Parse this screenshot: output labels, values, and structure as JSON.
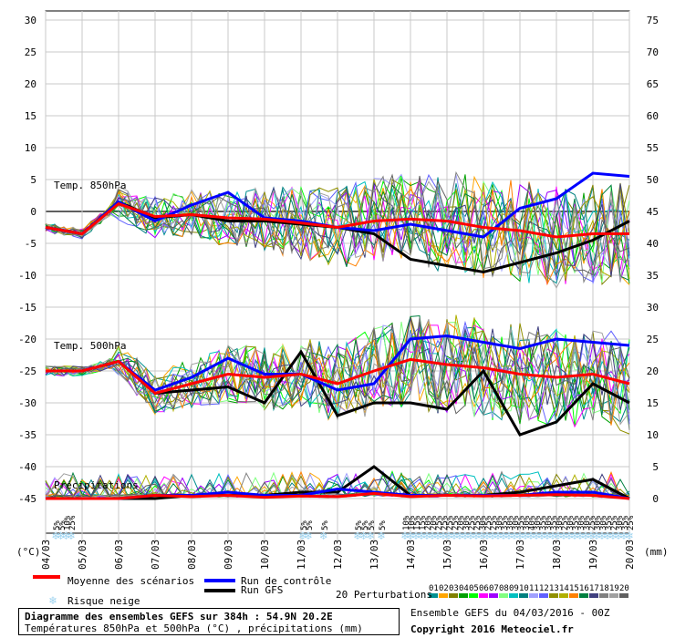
{
  "chart_data": {
    "type": "line",
    "x": [
      "04/03",
      "05/03",
      "06/03",
      "07/03",
      "08/03",
      "09/03",
      "10/03",
      "11/03",
      "12/03",
      "13/03",
      "14/03",
      "15/03",
      "16/03",
      "17/03",
      "18/03",
      "19/03",
      "20/03"
    ],
    "y_left_ticks": [
      "30",
      "25",
      "20",
      "15",
      "10",
      "5",
      "0",
      "-5",
      "-10",
      "-15",
      "-20",
      "-25",
      "-30",
      "-35",
      "-40",
      "-45"
    ],
    "y_right_ticks": [
      "75",
      "70",
      "65",
      "60",
      "55",
      "50",
      "45",
      "40",
      "35",
      "30",
      "25",
      "20",
      "15",
      "10",
      "5",
      "0"
    ],
    "y_left_unit": "(°C)",
    "y_right_unit": "(mm)",
    "ylim_left": [
      -45,
      30
    ],
    "panel_labels": [
      "Temp. 850hPa",
      "Temp. 500hPa",
      "Précipitations"
    ],
    "grid": true,
    "series": [
      {
        "name": "Moyenne des scénarios",
        "color": "#ff0000",
        "t850": [
          -2.5,
          -3.5,
          1.2,
          -0.8,
          -0.5,
          -1,
          -1.2,
          -1.8,
          -2.5,
          -1.5,
          -1.2,
          -1.5,
          -2.5,
          -3,
          -4,
          -3.5,
          -3.5
        ],
        "t500": [
          -25,
          -25,
          -23.5,
          -28.5,
          -27,
          -25.5,
          -26,
          -25.5,
          -27,
          -25,
          -23.2,
          -24,
          -24.5,
          -25.5,
          -26,
          -25.5,
          -27
        ],
        "precip": [
          0,
          0,
          0,
          0.5,
          0.3,
          0.5,
          0.2,
          0.4,
          0.3,
          0.8,
          0.3,
          0.5,
          0.4,
          0.5,
          0.6,
          0.5,
          0
        ]
      },
      {
        "name": "Run de contrôle",
        "color": "#0000ff",
        "t850": [
          -2.5,
          -3.5,
          1.5,
          -1.5,
          1,
          3,
          -1,
          -1.5,
          -2.5,
          -3,
          -2,
          -3,
          -4,
          0.5,
          2,
          6,
          5.5
        ],
        "t500": [
          -25,
          -25,
          -23.5,
          -28,
          -26,
          -23,
          -25.5,
          -25.5,
          -28,
          -27,
          -20,
          -19.5,
          -20.5,
          -21.5,
          -20,
          -20.5,
          -21
        ],
        "precip": [
          0,
          0,
          0,
          0.5,
          0.5,
          1,
          0.5,
          0.5,
          1.5,
          1,
          0.5,
          0.5,
          0.5,
          0.5,
          1,
          1,
          0
        ]
      },
      {
        "name": "Run GFS",
        "color": "#000000",
        "t850": [
          -2.5,
          -3.5,
          1.5,
          -1,
          -0.5,
          -1.5,
          -1.5,
          -2,
          -2.5,
          -3.5,
          -7.5,
          -8.5,
          -9.5,
          -8,
          -6.5,
          -4.5,
          -1.5
        ],
        "t500": [
          -25,
          -25,
          -23.5,
          -28.5,
          -28,
          -27.5,
          -30,
          -22,
          -32,
          -30,
          -30,
          -31,
          -25,
          -35,
          -33,
          -27,
          -30
        ],
        "precip": [
          0,
          0,
          0,
          0,
          0.5,
          0.5,
          0.5,
          1,
          1,
          5,
          0.5,
          0.5,
          0.5,
          1,
          2,
          3,
          0
        ]
      }
    ],
    "perturbations": {
      "count": 20,
      "labels": [
        "01",
        "02",
        "03",
        "04",
        "05",
        "06",
        "07",
        "08",
        "09",
        "10",
        "11",
        "12",
        "13",
        "14",
        "15",
        "16",
        "17",
        "18",
        "19",
        "20"
      ],
      "colors": [
        "#009090",
        "#ffa500",
        "#808000",
        "#00a000",
        "#00ff00",
        "#ff00ff",
        "#a000ff",
        "#80ff80",
        "#00c0c0",
        "#008080",
        "#a0a0ff",
        "#6060ff",
        "#909000",
        "#b0b000",
        "#ff8000",
        "#008040",
        "#404080",
        "#808080",
        "#a0a0a0",
        "#606060"
      ]
    },
    "snow_risk": [
      {
        "x": 0.28,
        "pct": "5%"
      },
      {
        "x": 0.42,
        "pct": "5%"
      },
      {
        "x": 0.56,
        "pct": "10%"
      },
      {
        "x": 0.7,
        "pct": "25%"
      },
      {
        "x": 7.05,
        "pct": "5%"
      },
      {
        "x": 7.2,
        "pct": "5%"
      },
      {
        "x": 7.62,
        "pct": "5%"
      },
      {
        "x": 8.55,
        "pct": "5%"
      },
      {
        "x": 8.72,
        "pct": "5%"
      },
      {
        "x": 8.9,
        "pct": "5%"
      },
      {
        "x": 9.2,
        "pct": "5%"
      },
      {
        "x": 9.85,
        "pct": "10%"
      },
      {
        "x": 10.0,
        "pct": "10%"
      },
      {
        "x": 10.15,
        "pct": "15%"
      },
      {
        "x": 10.3,
        "pct": "15%"
      },
      {
        "x": 10.45,
        "pct": "20%"
      },
      {
        "x": 10.6,
        "pct": "20%"
      },
      {
        "x": 10.75,
        "pct": "25%"
      },
      {
        "x": 10.9,
        "pct": "25%"
      },
      {
        "x": 11.05,
        "pct": "25%"
      },
      {
        "x": 11.2,
        "pct": "25%"
      },
      {
        "x": 11.35,
        "pct": "20%"
      },
      {
        "x": 11.5,
        "pct": "30%"
      },
      {
        "x": 11.65,
        "pct": "25%"
      },
      {
        "x": 11.8,
        "pct": "25%"
      },
      {
        "x": 11.95,
        "pct": "30%"
      },
      {
        "x": 12.1,
        "pct": "25%"
      },
      {
        "x": 12.25,
        "pct": "25%"
      },
      {
        "x": 12.4,
        "pct": "30%"
      },
      {
        "x": 12.55,
        "pct": "35%"
      },
      {
        "x": 12.7,
        "pct": "30%"
      },
      {
        "x": 12.85,
        "pct": "30%"
      },
      {
        "x": 13.0,
        "pct": "35%"
      },
      {
        "x": 13.15,
        "pct": "30%"
      },
      {
        "x": 13.3,
        "pct": "40%"
      },
      {
        "x": 13.45,
        "pct": "30%"
      },
      {
        "x": 13.6,
        "pct": "35%"
      },
      {
        "x": 13.75,
        "pct": "30%"
      },
      {
        "x": 13.9,
        "pct": "35%"
      },
      {
        "x": 14.05,
        "pct": "30%"
      },
      {
        "x": 14.2,
        "pct": "25%"
      },
      {
        "x": 14.35,
        "pct": "30%"
      },
      {
        "x": 14.5,
        "pct": "35%"
      },
      {
        "x": 14.65,
        "pct": "30%"
      },
      {
        "x": 14.8,
        "pct": "30%"
      },
      {
        "x": 14.95,
        "pct": "25%"
      },
      {
        "x": 15.1,
        "pct": "30%"
      },
      {
        "x": 15.25,
        "pct": "30%"
      },
      {
        "x": 15.4,
        "pct": "35%"
      },
      {
        "x": 15.55,
        "pct": "25%"
      },
      {
        "x": 15.7,
        "pct": "30%"
      },
      {
        "x": 15.85,
        "pct": "35%"
      },
      {
        "x": 16.0,
        "pct": "25%"
      }
    ]
  },
  "legend": {
    "mean": "Moyenne des scénarios",
    "control": "Run de contrôle",
    "gfs": "Run GFS",
    "snow": "Risque neige",
    "perturbations": "20 Perturbations"
  },
  "footer": {
    "title": "Diagramme des ensembles GEFS sur 384h : 54.9N 20.2E",
    "subtitle": "Températures 850hPa et 500hPa (°C) , précipitations (mm)",
    "run": "Ensemble GEFS du 04/03/2016 - 00Z",
    "copyright": "Copyright 2016 Meteociel.fr"
  },
  "colors": {
    "mean": "#ff0000",
    "control": "#0000ff",
    "gfs": "#000000",
    "grid": "#c8c8c8",
    "snow": "#9fd4f0"
  }
}
